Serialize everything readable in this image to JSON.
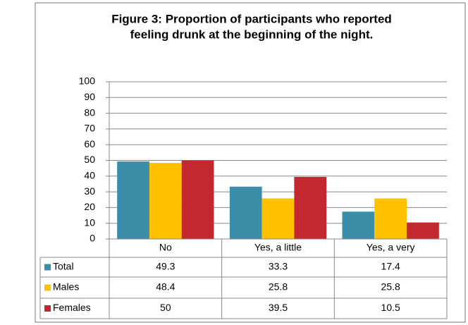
{
  "chart_data": {
    "type": "bar",
    "title": [
      "Figure 3: Proportion of participants who reported",
      "feeling drunk at the beginning of the night."
    ],
    "categories": [
      "No",
      "Yes, a little",
      "Yes, a very"
    ],
    "series": [
      {
        "name": "Total",
        "color": "#3a8ea8",
        "values": [
          49.3,
          33.3,
          17.4
        ]
      },
      {
        "name": "Males",
        "color": "#ffc000",
        "values": [
          48.4,
          25.8,
          25.8
        ]
      },
      {
        "name": "Females",
        "color": "#c3282e",
        "values": [
          50,
          39.5,
          10.5
        ]
      }
    ],
    "ylim": [
      0,
      100
    ],
    "yticks": [
      0,
      10,
      20,
      30,
      40,
      50,
      60,
      70,
      80,
      90,
      100
    ],
    "grid": true
  }
}
